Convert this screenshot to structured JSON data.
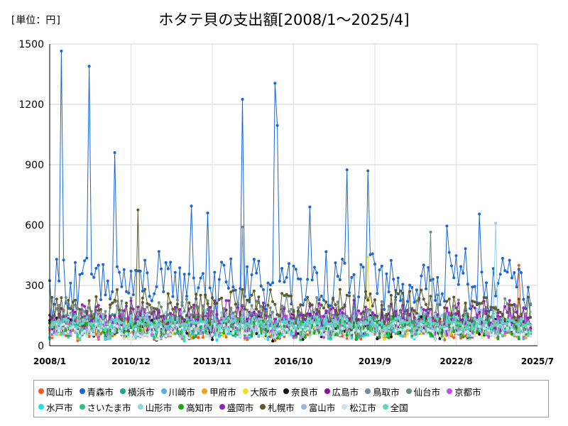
{
  "chart_data": {
    "type": "line",
    "title": "ホタテ貝の支出額[2008/1～2025/4]",
    "unit_label": "[単位：円]",
    "ylim": [
      0,
      1500
    ],
    "yticks": [
      "0",
      "300",
      "600",
      "900",
      "1200",
      "1500"
    ],
    "xlim": [
      "2008/1",
      "2025/7"
    ],
    "xticks": [
      "2008/1",
      "2010/12",
      "2013/11",
      "2016/10",
      "2019/9",
      "2022/8",
      "2025/7"
    ],
    "grid": true,
    "legend_position": "bottom",
    "months": 208,
    "series": [
      {
        "name": "岡山市",
        "color": "#f25a22",
        "base": 70,
        "amp": 40,
        "spikes": [
          [
            202,
            400
          ]
        ]
      },
      {
        "name": "青森市",
        "color": "#1a66d4",
        "base": 300,
        "amp": 130,
        "spikes": [
          [
            5,
            1465
          ],
          [
            17,
            1390
          ],
          [
            28,
            960
          ],
          [
            61,
            695
          ],
          [
            68,
            660
          ],
          [
            83,
            1225
          ],
          [
            97,
            1305
          ],
          [
            98,
            1095
          ],
          [
            112,
            690
          ],
          [
            128,
            875
          ],
          [
            137,
            870
          ],
          [
            171,
            595
          ],
          [
            185,
            655
          ]
        ]
      },
      {
        "name": "横浜市",
        "color": "#1aa68a",
        "base": 100,
        "amp": 50,
        "spikes": []
      },
      {
        "name": "川崎市",
        "color": "#55b0e6",
        "base": 90,
        "amp": 50,
        "spikes": []
      },
      {
        "name": "甲府市",
        "color": "#f6a21c",
        "base": 90,
        "amp": 50,
        "spikes": []
      },
      {
        "name": "大阪市",
        "color": "#f0e020",
        "base": 85,
        "amp": 45,
        "spikes": [
          [
            137,
            440
          ]
        ]
      },
      {
        "name": "奈良市",
        "color": "#111111",
        "base": 90,
        "amp": 55,
        "spikes": []
      },
      {
        "name": "広島市",
        "color": "#8a159a",
        "base": 110,
        "amp": 60,
        "spikes": []
      },
      {
        "name": "鳥取市",
        "color": "#7a8a99",
        "base": 120,
        "amp": 70,
        "spikes": [
          [
            83,
            590
          ]
        ]
      },
      {
        "name": "仙台市",
        "color": "#6e8c84",
        "base": 150,
        "amp": 80,
        "spikes": [
          [
            164,
            565
          ]
        ]
      },
      {
        "name": "京都市",
        "color": "#c050e0",
        "base": 100,
        "amp": 55,
        "spikes": []
      },
      {
        "name": "水戸市",
        "color": "#1ee0e6",
        "base": 80,
        "amp": 45,
        "spikes": []
      },
      {
        "name": "さいたま市",
        "color": "#2ec277",
        "base": 95,
        "amp": 50,
        "spikes": []
      },
      {
        "name": "山形市",
        "color": "#8ad6e6",
        "base": 110,
        "amp": 60,
        "spikes": [
          [
            192,
            610
          ]
        ]
      },
      {
        "name": "高知市",
        "color": "#1aa81a",
        "base": 85,
        "amp": 45,
        "spikes": []
      },
      {
        "name": "盛岡市",
        "color": "#8d24b8",
        "base": 140,
        "amp": 70,
        "spikes": []
      },
      {
        "name": "札幌市",
        "color": "#5a5a2a",
        "base": 170,
        "amp": 90,
        "spikes": [
          [
            38,
            675
          ]
        ]
      },
      {
        "name": "富山市",
        "color": "#9ab8d6",
        "base": 90,
        "amp": 45,
        "spikes": []
      },
      {
        "name": "松江市",
        "color": "#cde6f2",
        "base": 70,
        "amp": 40,
        "spikes": []
      },
      {
        "name": "全国",
        "color": "#5ed6c0",
        "base": 110,
        "amp": 20,
        "spikes": []
      }
    ]
  }
}
